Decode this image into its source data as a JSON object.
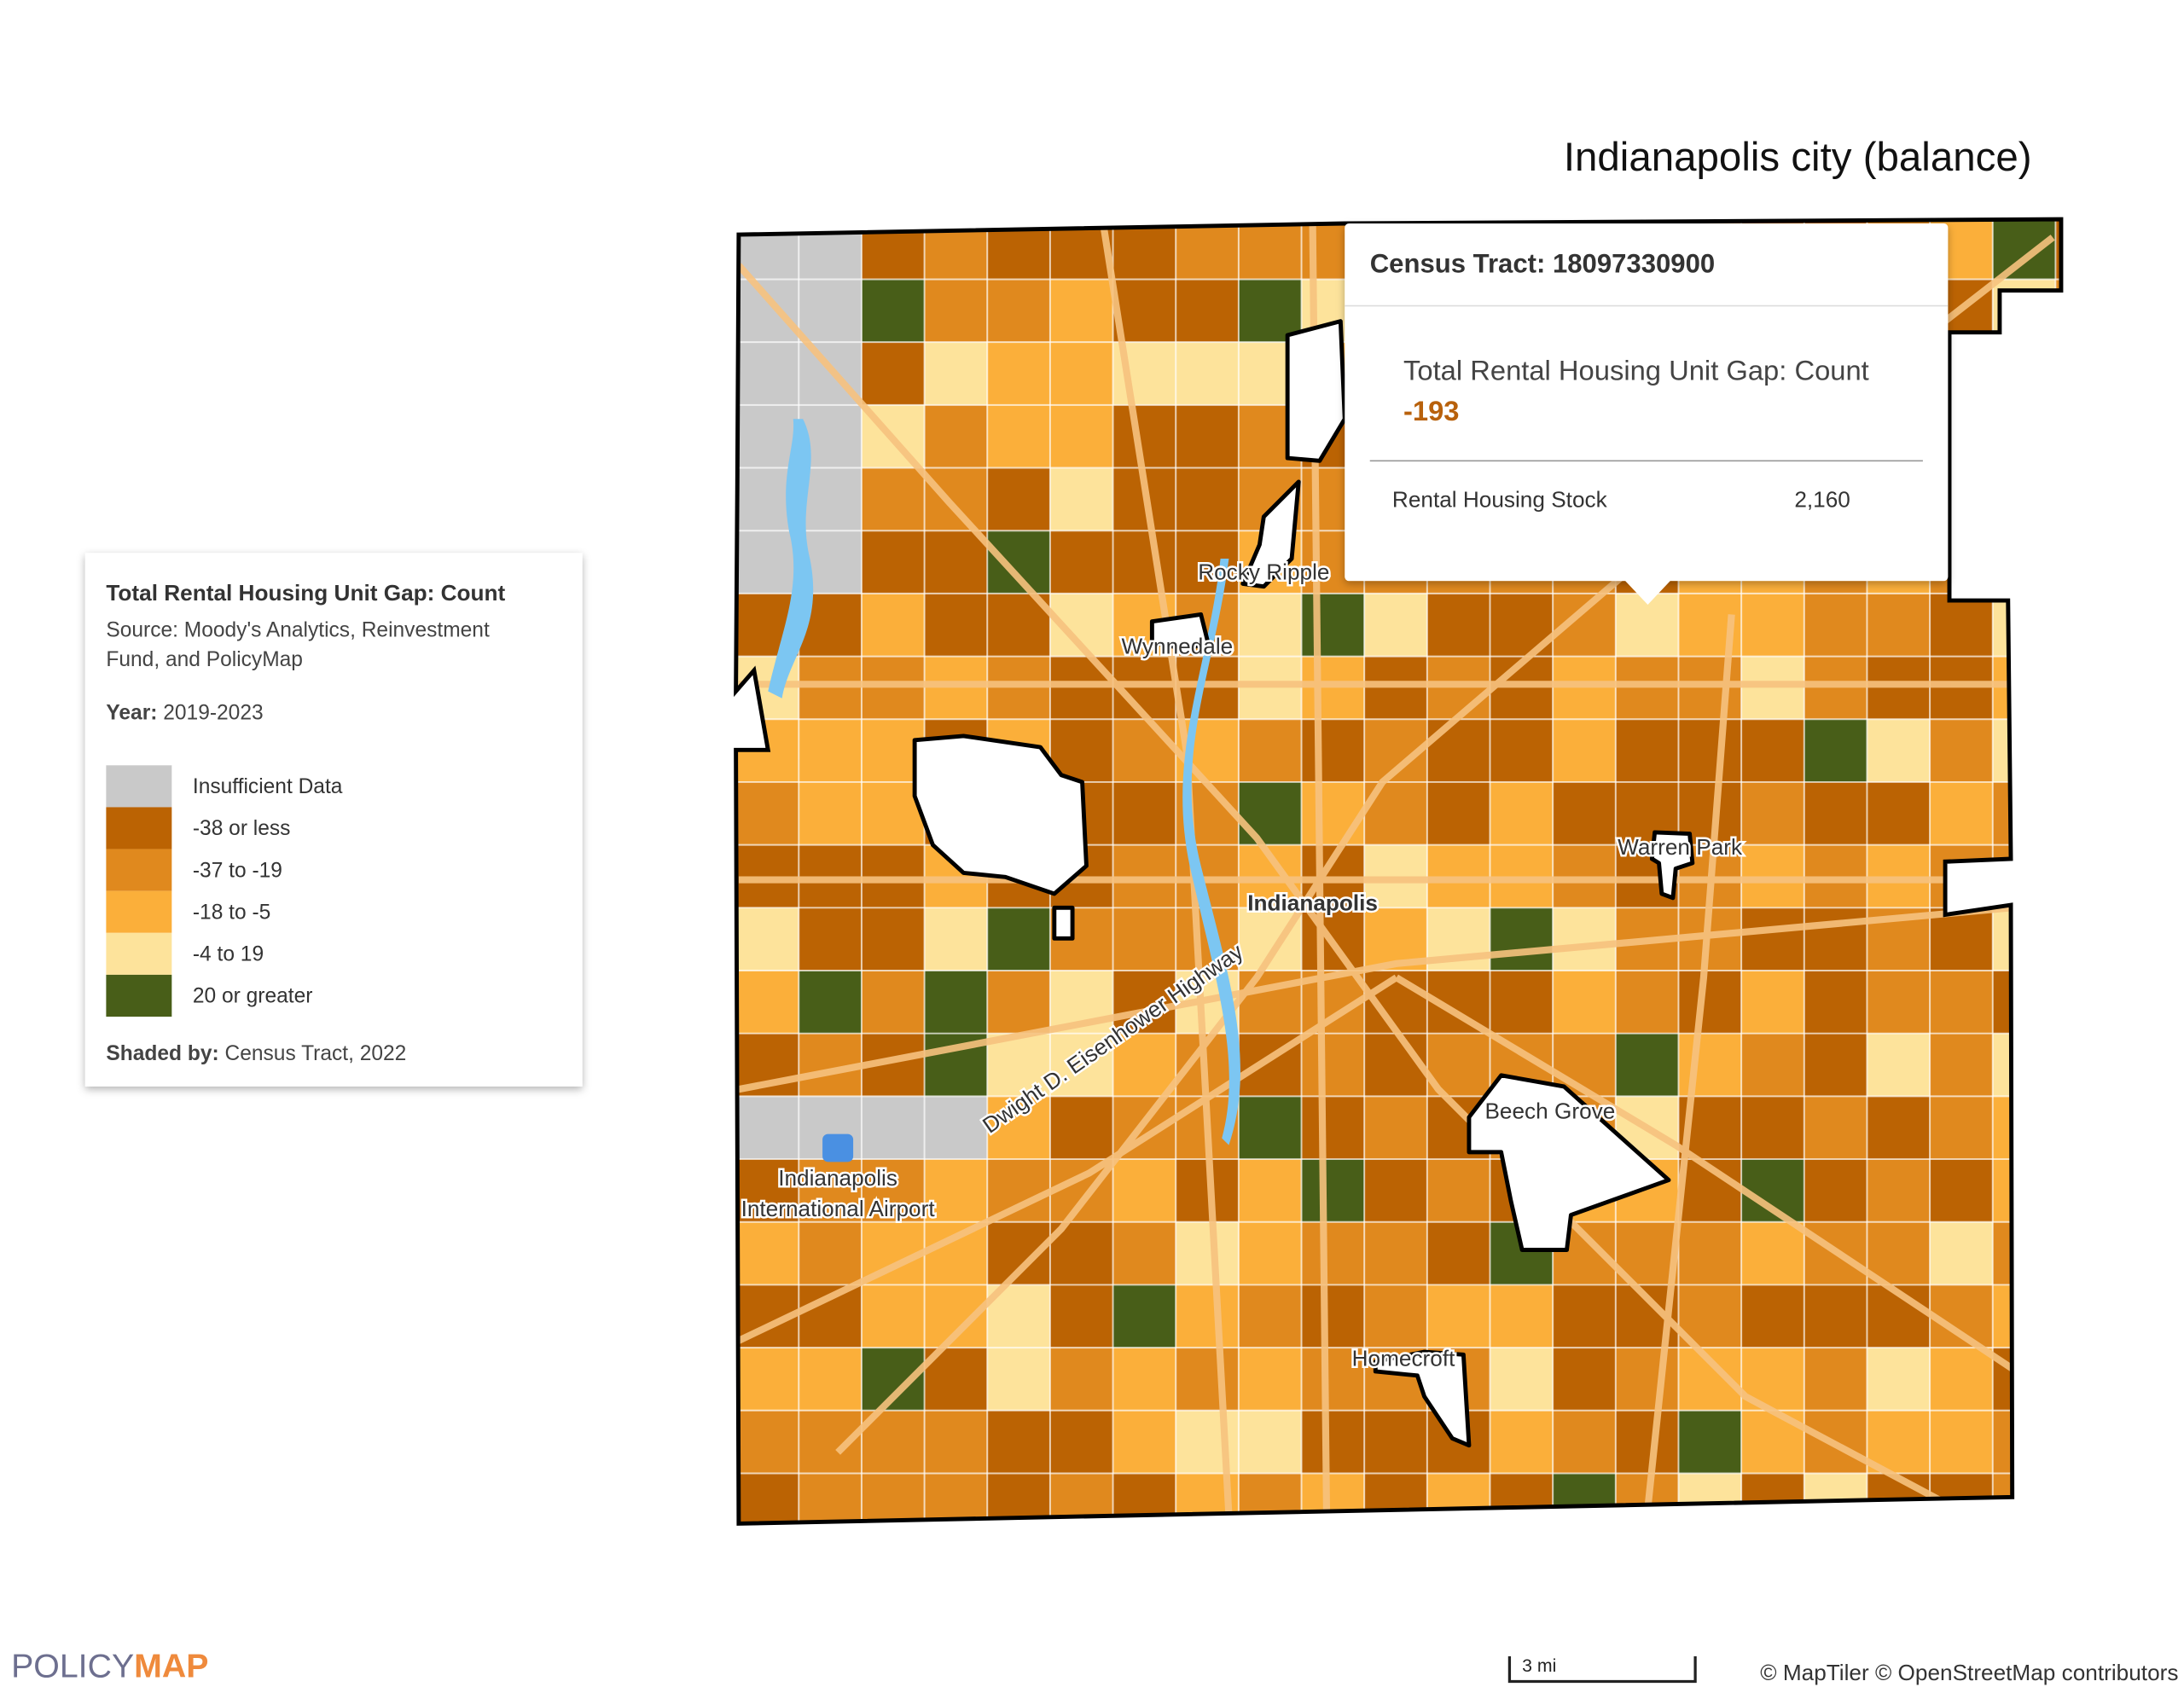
{
  "title": "Indianapolis city (balance)",
  "tooltip": {
    "title": "Census Tract: 18097330900",
    "metric_label": "Total Rental Housing Unit Gap: Count",
    "metric_value": "-193",
    "rows": [
      {
        "label": "Rental Housing Stock",
        "value": "2,160"
      }
    ]
  },
  "legend": {
    "title": "Total Rental Housing Unit Gap: Count",
    "source": [
      "Source: Moody's Analytics, Reinvestment",
      "Fund, and PolicyMap"
    ],
    "year_label": "Year:",
    "year": "2019-2023",
    "items": [
      {
        "label": "Insufficient Data",
        "color": "#c9c9c9"
      },
      {
        "label": "-38 or less",
        "color": "#bb6303"
      },
      {
        "label": "-37 to -19",
        "color": "#e0891e"
      },
      {
        "label": "-18 to -5",
        "color": "#fbaf3a"
      },
      {
        "label": "-4 to 19",
        "color": "#fde39b"
      },
      {
        "label": "20 or greater",
        "color": "#485e18"
      }
    ],
    "shaded_by_label": "Shaded by:",
    "shaded_by": "Census Tract, 2022"
  },
  "map_labels": {
    "city": "Indianapolis",
    "places": [
      "Rocky Ripple",
      "Wynnedale",
      "Warren Park",
      "Beech Grove",
      "Homecroft"
    ],
    "highway": "Dwight D. Eisenhower Highway",
    "airport": [
      "Indianapolis",
      "International Airport"
    ]
  },
  "scale": "3 mi",
  "attribution": "© MapTiler © OpenStreetMap contributors",
  "logo": [
    "POLICY",
    "MAP"
  ]
}
